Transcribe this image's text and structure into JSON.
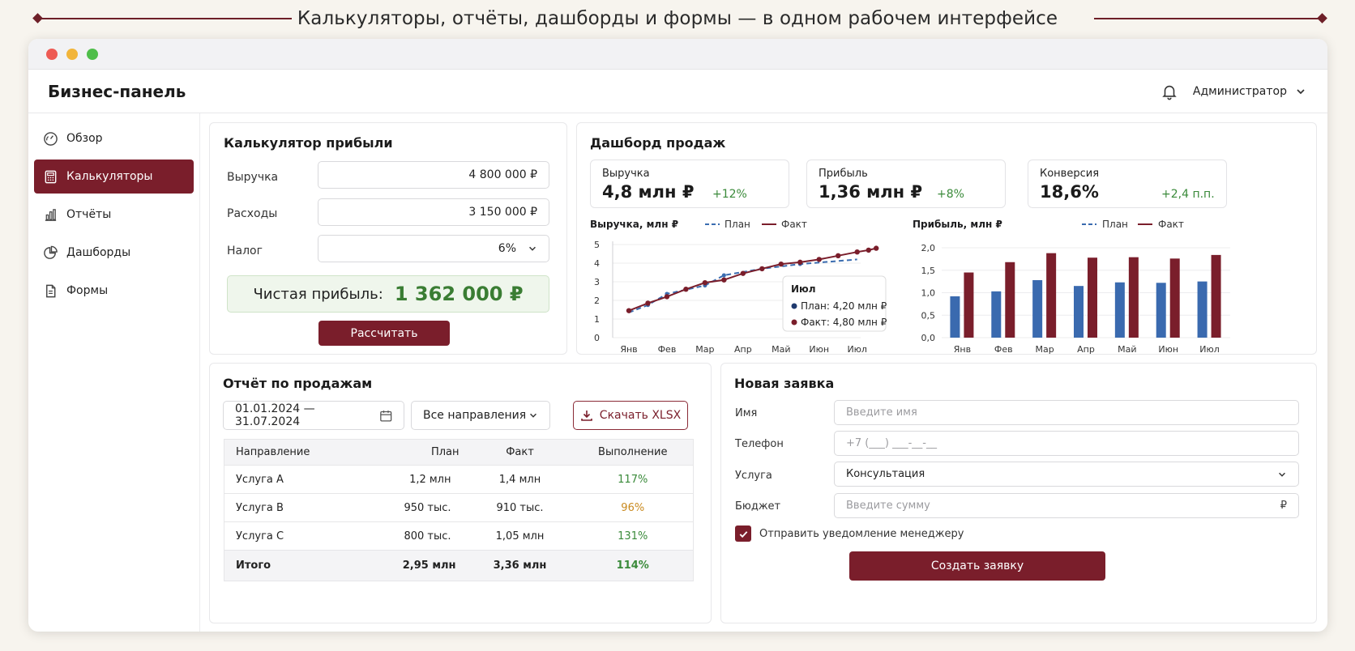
{
  "headline": "Калькуляторы, отчёты, дашборды и формы — в одном рабочем интерфейсе",
  "app": {
    "title": "Бизнес-панель",
    "user": "Администратор"
  },
  "sidebar": {
    "items": [
      {
        "label": "Обзор",
        "icon": "gauge-icon",
        "active": false
      },
      {
        "label": "Калькуляторы",
        "icon": "calculator-icon",
        "active": true
      },
      {
        "label": "Отчёты",
        "icon": "bar-chart-icon",
        "active": false
      },
      {
        "label": "Дашборды",
        "icon": "pie-chart-icon",
        "active": false
      },
      {
        "label": "Формы",
        "icon": "document-icon",
        "active": false
      }
    ]
  },
  "calculator": {
    "title": "Калькулятор прибыли",
    "revenue_label": "Выручка",
    "revenue_value": "4 800 000 ₽",
    "expenses_label": "Расходы",
    "expenses_value": "3 150 000 ₽",
    "tax_label": "Налог",
    "tax_value": "6%",
    "result_label": "Чистая прибыль:",
    "result_value": "1 362 000 ₽",
    "button": "Рассчитать"
  },
  "dashboard": {
    "title": "Дашборд продаж",
    "kpis": [
      {
        "label": "Выручка",
        "value": "4,8 млн ₽",
        "change": "+12%"
      },
      {
        "label": "Прибыль",
        "value": "1,36 млн ₽",
        "change": "+8%"
      },
      {
        "label": "Конверсия",
        "value": "18,6%",
        "change": "+2,4 п.п."
      }
    ],
    "tooltip": {
      "title": "Июл",
      "plan": "План: 4,20 млн ₽",
      "fact": "Факт: 4,80 млн ₽"
    }
  },
  "chart_data": [
    {
      "type": "line",
      "title": "Выручка, млн ₽",
      "categories": [
        "Янв",
        "Фев",
        "Мар",
        "Апр",
        "Май",
        "Июн",
        "Июл"
      ],
      "x": [
        0,
        0.5,
        1,
        1.5,
        2,
        2.5,
        3,
        3.5,
        4,
        4.5,
        5,
        5.5,
        6
      ],
      "series": [
        {
          "name": "План",
          "style": "dashed",
          "color": "#3b6db0",
          "values": [
            1.35,
            1.75,
            2.35,
            2.8,
            3.35,
            3.7,
            3.95,
            4.2
          ],
          "x": [
            0,
            0.5,
            1,
            2,
            2.5,
            3.5,
            4.5,
            6
          ]
        },
        {
          "name": "Факт",
          "style": "solid",
          "color": "#7a1e2b",
          "values": [
            1.45,
            1.85,
            2.2,
            2.6,
            2.95,
            3.1,
            3.45,
            3.7,
            3.95,
            4.05,
            4.2,
            4.4,
            4.6,
            4.7,
            4.8
          ],
          "x": [
            0,
            0.5,
            1,
            1.5,
            2,
            2.5,
            3,
            3.5,
            4,
            4.5,
            5,
            5.5,
            6,
            6.3,
            6.5
          ]
        }
      ],
      "ylim": [
        0,
        5
      ],
      "yticks": [
        "0",
        "1",
        "2",
        "3",
        "4",
        "5"
      ],
      "legend": "top"
    },
    {
      "type": "bar",
      "title": "Прибыль, млн ₽",
      "categories": [
        "Янв",
        "Фев",
        "Мар",
        "Апр",
        "Май",
        "Июн",
        "Июл"
      ],
      "series": [
        {
          "name": "План",
          "color": "#3a6aaf",
          "values": [
            0.92,
            1.03,
            1.28,
            1.15,
            1.23,
            1.22,
            1.25
          ]
        },
        {
          "name": "Факт",
          "color": "#7a1e2b",
          "values": [
            1.45,
            1.68,
            1.88,
            1.78,
            1.79,
            1.76,
            1.84
          ]
        }
      ],
      "ylim": [
        0,
        2
      ],
      "yticks": [
        "0,0",
        "0,5",
        "1,0",
        "1,5",
        "2,0"
      ],
      "legend": "top"
    }
  ],
  "report": {
    "title": "Отчёт по продажам",
    "date_range": "01.01.2024 — 31.07.2024",
    "filter": "Все направления",
    "download": "Скачать XLSX",
    "columns": [
      "Направление",
      "План",
      "Факт",
      "Выполнение"
    ],
    "rows": [
      {
        "name": "Услуга A",
        "plan": "1,2 млн",
        "fact": "1,4 млн",
        "pct": "117%",
        "color": "#3a8a3a"
      },
      {
        "name": "Услуга B",
        "plan": "950 тыс.",
        "fact": "910 тыс.",
        "pct": "96%",
        "color": "#c98a1f"
      },
      {
        "name": "Услуга C",
        "plan": "800 тыс.",
        "fact": "1,05 млн",
        "pct": "131%",
        "color": "#3a8a3a"
      }
    ],
    "total": {
      "name": "Итого",
      "plan": "2,95 млн",
      "fact": "3,36 млн",
      "pct": "114%"
    }
  },
  "form": {
    "title": "Новая заявка",
    "name_label": "Имя",
    "name_placeholder": "Введите имя",
    "phone_label": "Телефон",
    "phone_placeholder": "+7 (___) ___-__-__",
    "service_label": "Услуга",
    "service_value": "Консультация",
    "budget_label": "Бюджет",
    "budget_placeholder": "Введите сумму",
    "budget_currency": "₽",
    "notify_label": "Отправить уведомление менеджеру",
    "submit": "Создать заявку"
  },
  "colors": {
    "accent": "#7a1e2b",
    "plan": "#3a6aaf",
    "positive": "#3a8a3a",
    "warning": "#c98a1f"
  }
}
